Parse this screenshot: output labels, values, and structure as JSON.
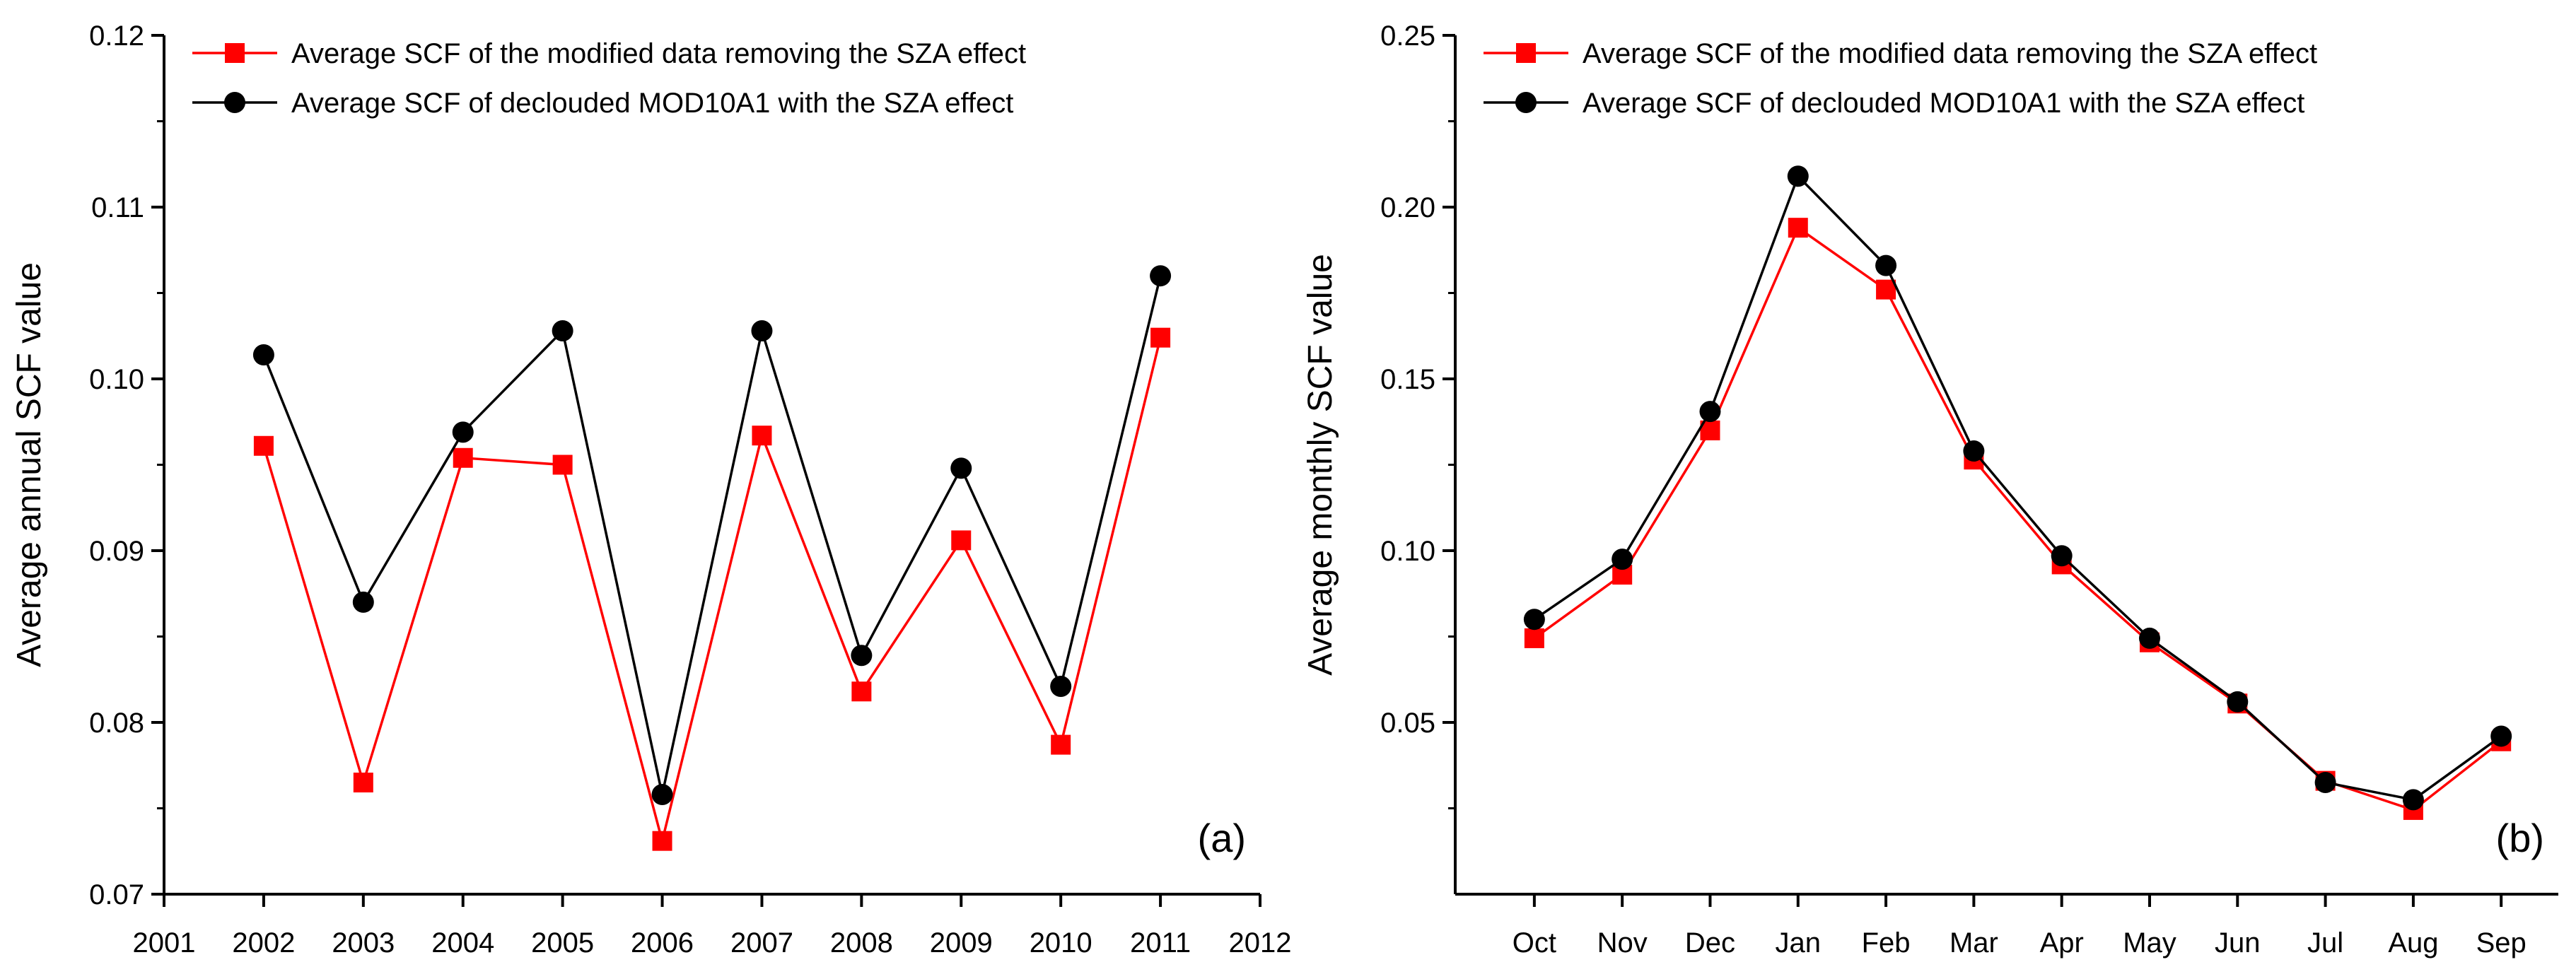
{
  "chart_data": [
    {
      "type": "line",
      "panel_label": "(a)",
      "xlabel": "",
      "ylabel": "Average annual  SCF value",
      "x": [
        2002,
        2003,
        2004,
        2005,
        2006,
        2007,
        2008,
        2009,
        2010,
        2011
      ],
      "xlim": [
        2001,
        2012
      ],
      "x_ticks": [
        "2001",
        "2002",
        "2003",
        "2004",
        "2005",
        "2006",
        "2007",
        "2008",
        "2009",
        "2010",
        "2011",
        "2012"
      ],
      "ylim": [
        0.07,
        0.12
      ],
      "y_ticks": [
        "0.07",
        "0.08",
        "0.09",
        "0.10",
        "0.11",
        "0.12"
      ],
      "grid": false,
      "legend_position": "top-left",
      "series": [
        {
          "name": "Average SCF of the modified data removing the SZA effect",
          "color": "#ff0000",
          "marker": "square",
          "values": [
            0.0961,
            0.0765,
            0.0954,
            0.095,
            0.0731,
            0.0967,
            0.0818,
            0.0906,
            0.0787,
            0.1024
          ]
        },
        {
          "name": "Average SCF of declouded MOD10A1 with the SZA effect",
          "color": "#000000",
          "marker": "circle",
          "values": [
            0.1014,
            0.087,
            0.0969,
            0.1028,
            0.0758,
            0.1028,
            0.0839,
            0.0948,
            0.0821,
            0.106
          ]
        }
      ]
    },
    {
      "type": "line",
      "panel_label": "(b)",
      "xlabel": "",
      "ylabel": "Average monthly SCF value",
      "categories": [
        "Oct",
        "Nov",
        "Dec",
        "Jan",
        "Feb",
        "Mar",
        "Apr",
        "May",
        "Jun",
        "Jul",
        "Aug",
        "Sep"
      ],
      "ylim": [
        0.0,
        0.25
      ],
      "y_ticks": [
        "0.05",
        "0.10",
        "0.15",
        "0.20",
        "0.25"
      ],
      "grid": false,
      "legend_position": "top-left",
      "series": [
        {
          "name": "Average SCF of the modified data removing the SZA effect",
          "color": "#ff0000",
          "marker": "square",
          "values": [
            0.0745,
            0.093,
            0.135,
            0.194,
            0.176,
            0.1265,
            0.096,
            0.0733,
            0.0555,
            0.033,
            0.0245,
            0.0445
          ]
        },
        {
          "name": "Average SCF of declouded MOD10A1 with the SZA effect",
          "color": "#000000",
          "marker": "circle",
          "values": [
            0.08,
            0.0975,
            0.1405,
            0.209,
            0.183,
            0.129,
            0.0985,
            0.0745,
            0.056,
            0.0325,
            0.0275,
            0.046
          ]
        }
      ]
    }
  ]
}
